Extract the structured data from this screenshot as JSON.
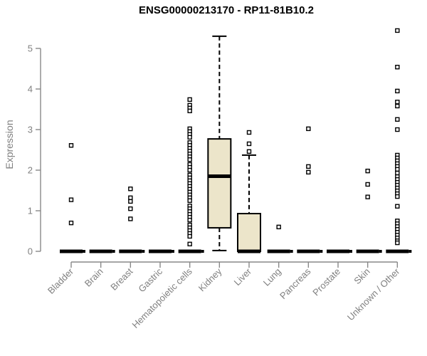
{
  "chart_data": {
    "type": "boxplot",
    "title": "ENSG00000213170 - RP11-81B10.2",
    "ylabel": "Expression",
    "xlabel": "",
    "ylim": [
      0,
      5.5
    ],
    "yticks": [
      0,
      1,
      2,
      3,
      4,
      5
    ],
    "grid": false,
    "legend": false,
    "categories": [
      "Bladder",
      "Brain",
      "Breast",
      "Gastric",
      "Hematopoietic cells",
      "Kidney",
      "Liver",
      "Lung",
      "Pancreas",
      "Prostate",
      "Skin",
      "Unknown / Other"
    ],
    "series": [
      {
        "category": "Bladder",
        "q1": 0,
        "median": 0,
        "q3": 0,
        "whisker_low": 0,
        "whisker_high": 0,
        "outliers": [
          2.61,
          1.27,
          0.7
        ]
      },
      {
        "category": "Brain",
        "q1": 0,
        "median": 0,
        "q3": 0,
        "whisker_low": 0,
        "whisker_high": 0,
        "outliers": []
      },
      {
        "category": "Breast",
        "q1": 0,
        "median": 0,
        "q3": 0,
        "whisker_low": 0,
        "whisker_high": 0,
        "outliers": [
          1.54,
          1.32,
          1.23,
          1.05,
          0.8
        ]
      },
      {
        "category": "Gastric",
        "q1": 0,
        "median": 0,
        "q3": 0,
        "whisker_low": 0,
        "whisker_high": 0,
        "outliers": []
      },
      {
        "category": "Hematopoietic cells",
        "q1": 0,
        "median": 0,
        "q3": 0,
        "whisker_low": 0,
        "whisker_high": 0,
        "outliers": [
          3.74,
          3.6,
          3.53,
          3.46,
          3.02,
          2.95,
          2.88,
          2.81,
          2.68,
          2.61,
          2.54,
          2.47,
          2.4,
          2.33,
          2.26,
          2.14,
          2.07,
          2.0,
          1.88,
          1.81,
          1.74,
          1.67,
          1.6,
          1.53,
          1.46,
          1.39,
          1.32,
          1.25,
          1.12,
          1.05,
          0.98,
          0.91,
          0.84,
          0.77,
          0.65,
          0.58,
          0.51,
          0.44,
          0.37,
          0.18
        ]
      },
      {
        "category": "Kidney",
        "q1": 0.58,
        "median": 1.85,
        "q3": 2.77,
        "whisker_low": 0.02,
        "whisker_high": 5.3,
        "outliers": []
      },
      {
        "category": "Liver",
        "q1": 0,
        "median": 0,
        "q3": 0.93,
        "whisker_low": 0,
        "whisker_high": 2.37,
        "outliers": [
          2.93,
          2.65,
          2.46
        ]
      },
      {
        "category": "Lung",
        "q1": 0,
        "median": 0,
        "q3": 0,
        "whisker_low": 0,
        "whisker_high": 0,
        "outliers": [
          0.6
        ]
      },
      {
        "category": "Pancreas",
        "q1": 0,
        "median": 0,
        "q3": 0,
        "whisker_low": 0,
        "whisker_high": 0,
        "outliers": [
          3.02,
          2.09,
          1.95
        ]
      },
      {
        "category": "Prostate",
        "q1": 0,
        "median": 0,
        "q3": 0,
        "whisker_low": 0,
        "whisker_high": 0,
        "outliers": []
      },
      {
        "category": "Skin",
        "q1": 0,
        "median": 0,
        "q3": 0,
        "whisker_low": 0,
        "whisker_high": 0,
        "outliers": [
          1.98,
          1.65,
          1.34
        ]
      },
      {
        "category": "Unknown / Other",
        "q1": 0,
        "median": 0,
        "q3": 0,
        "whisker_low": 0,
        "whisker_high": 0,
        "outliers": [
          5.44,
          4.54,
          3.95,
          3.68,
          3.58,
          3.25,
          3.0,
          2.37,
          2.3,
          2.23,
          2.16,
          2.09,
          2.02,
          1.93,
          1.84,
          1.77,
          1.7,
          1.63,
          1.56,
          1.49,
          1.42,
          1.35,
          1.11,
          0.75,
          0.68,
          0.61,
          0.54,
          0.47,
          0.4,
          0.33,
          0.26,
          0.21
        ]
      }
    ],
    "colors": {
      "box_fill": "#ECE5CA",
      "box_stroke": "#000000",
      "median": "#000000",
      "whisker": "#000000",
      "outlier_stroke": "#000000",
      "outlier_fill": "#FFFFFF",
      "axis_line": "#888888",
      "axis_text": "#808080",
      "title_text": "#000000",
      "background": "#FFFFFF"
    }
  }
}
